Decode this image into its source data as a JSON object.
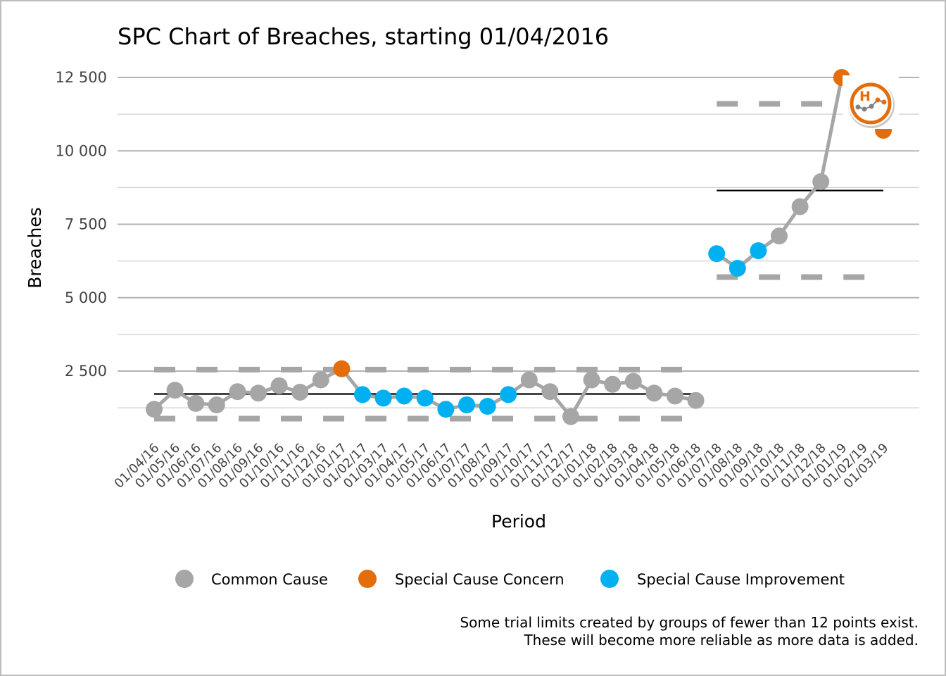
{
  "chart_data": {
    "type": "line",
    "title": "SPC Chart of Breaches, starting 01/04/2016",
    "xlabel": "Period",
    "ylabel": "Breaches",
    "ylim": [
      -1100,
      13500
    ],
    "y_ticks": [
      2500,
      5000,
      7500,
      10000,
      12500
    ],
    "y_tick_labels": [
      "2 500",
      "5 000",
      "7 500",
      "10 000",
      "12 500"
    ],
    "grid": "horizontal",
    "legend_position": "bottom",
    "categories": [
      "01/04/16",
      "01/05/16",
      "01/06/16",
      "01/07/16",
      "01/08/16",
      "01/09/16",
      "01/10/16",
      "01/11/16",
      "01/12/16",
      "01/01/17",
      "01/02/17",
      "01/03/17",
      "01/04/17",
      "01/05/17",
      "01/06/17",
      "01/07/17",
      "01/08/17",
      "01/09/17",
      "01/10/17",
      "01/11/17",
      "01/12/17",
      "01/01/18",
      "01/02/18",
      "01/03/18",
      "01/04/18",
      "01/05/18",
      "01/06/18",
      "01/07/18",
      "01/08/18",
      "01/09/18",
      "01/10/18",
      "01/11/18",
      "01/12/18",
      "01/01/19",
      "01/02/19",
      "01/03/19"
    ],
    "series": [
      {
        "values": [
          1200,
          1850,
          1400,
          1350,
          1800,
          1750,
          2000,
          1780,
          2200,
          2580,
          1700,
          1580,
          1650,
          1580,
          1200,
          1350,
          1300,
          1700,
          2200,
          1800,
          950,
          2200,
          2050,
          2150,
          1750,
          1650,
          1500,
          6500,
          6000,
          6600,
          7100,
          8100,
          8950,
          12500,
          null,
          10700
        ],
        "status": [
          "common",
          "common",
          "common",
          "common",
          "common",
          "common",
          "common",
          "common",
          "common",
          "concern",
          "improvement",
          "improvement",
          "improvement",
          "improvement",
          "improvement",
          "improvement",
          "improvement",
          "improvement",
          "common",
          "common",
          "common",
          "common",
          "common",
          "common",
          "common",
          "common",
          "common",
          "improvement",
          "improvement",
          "improvement",
          "common",
          "common",
          "common",
          "concern",
          null,
          "concern"
        ]
      }
    ],
    "limits": [
      {
        "from_index": 0,
        "to_index": 26,
        "mean": 1720,
        "upper": 2550,
        "lower": 880
      },
      {
        "from_index": 27,
        "to_index": 35,
        "mean": 8650,
        "upper": 11600,
        "lower": 5700
      }
    ],
    "status_colors": {
      "common": "#a6a6a6",
      "concern": "#e46c0a",
      "improvement": "#00b0f0"
    },
    "line_color": "#a6a6a6",
    "legend": [
      {
        "label": "Common Cause",
        "status": "common"
      },
      {
        "label": "Special Cause Concern",
        "status": "concern"
      },
      {
        "label": "Special Cause Improvement",
        "status": "improvement"
      }
    ],
    "caption": [
      "Some trial limits created by groups of fewer than 12 points exist.",
      "These will become more reliable as more data is added."
    ],
    "badge": {
      "letter": "H",
      "icon": "variation-high-concern-icon",
      "color": "#e46c0a"
    }
  }
}
